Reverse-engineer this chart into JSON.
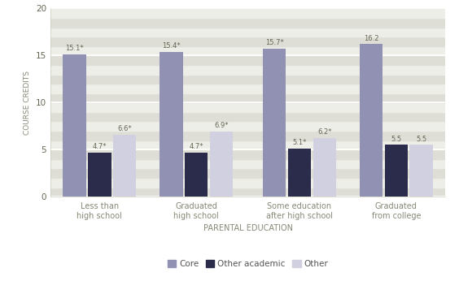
{
  "categories": [
    "Less than\nhigh school",
    "Graduated\nhigh school",
    "Some education\nafter high school",
    "Graduated\nfrom college"
  ],
  "series": {
    "Core": [
      15.1,
      15.4,
      15.7,
      16.2
    ],
    "Other academic": [
      4.7,
      4.7,
      5.1,
      5.5
    ],
    "Other": [
      6.6,
      6.9,
      6.2,
      5.5
    ]
  },
  "labels": {
    "Core": [
      "15.1*",
      "15.4*",
      "15.7*",
      "16.2"
    ],
    "Other academic": [
      "4.7*",
      "4.7*",
      "5.1*",
      "5.5"
    ],
    "Other": [
      "6.6*",
      "6.9*",
      "6.2*",
      "5.5"
    ]
  },
  "colors": {
    "Core": "#9191b4",
    "Other academic": "#2b2b4b",
    "Other": "#d0d0e0"
  },
  "ylim": [
    0,
    20
  ],
  "yticks": [
    0,
    5,
    10,
    15,
    20
  ],
  "ylabel": "COURSE CREDITS",
  "xlabel": "PARENTAL EDUCATION",
  "stripe_colors": [
    "#deded6",
    "#eeeee8"
  ],
  "bar_width": 0.18,
  "group_positions": [
    0.35,
    1.1,
    1.9,
    2.65
  ]
}
